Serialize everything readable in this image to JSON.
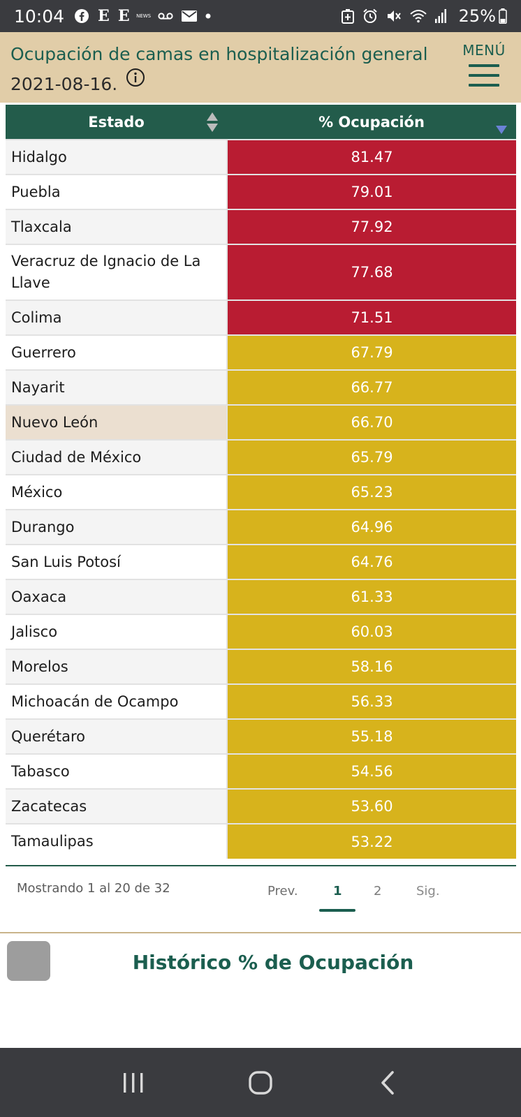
{
  "status_bar": {
    "time": "10:04",
    "e1": "E",
    "e2": "E",
    "news": "NEWS",
    "battery": "25%"
  },
  "header": {
    "title": "Ocupación de camas en hospitalización general",
    "date": "2021-08-16.",
    "menu_label": "MENÚ"
  },
  "table": {
    "col_estado": "Estado",
    "col_ocupacion": "% Ocupación",
    "rows": [
      {
        "estado": "Hidalgo",
        "ocupacion": "81.47"
      },
      {
        "estado": "Puebla",
        "ocupacion": "79.01"
      },
      {
        "estado": "Tlaxcala",
        "ocupacion": "77.92"
      },
      {
        "estado": "Veracruz de Ignacio de La Llave",
        "ocupacion": "77.68"
      },
      {
        "estado": "Colima",
        "ocupacion": "71.51"
      },
      {
        "estado": "Guerrero",
        "ocupacion": "67.79"
      },
      {
        "estado": "Nayarit",
        "ocupacion": "66.77"
      },
      {
        "estado": "Nuevo León",
        "ocupacion": "66.70"
      },
      {
        "estado": "Ciudad de México",
        "ocupacion": "65.79"
      },
      {
        "estado": "México",
        "ocupacion": "65.23"
      },
      {
        "estado": "Durango",
        "ocupacion": "64.96"
      },
      {
        "estado": "San Luis Potosí",
        "ocupacion": "64.76"
      },
      {
        "estado": "Oaxaca",
        "ocupacion": "61.33"
      },
      {
        "estado": "Jalisco",
        "ocupacion": "60.03"
      },
      {
        "estado": "Morelos",
        "ocupacion": "58.16"
      },
      {
        "estado": "Michoacán de Ocampo",
        "ocupacion": "56.33"
      },
      {
        "estado": "Querétaro",
        "ocupacion": "55.18"
      },
      {
        "estado": "Tabasco",
        "ocupacion": "54.56"
      },
      {
        "estado": "Zacatecas",
        "ocupacion": "53.60"
      },
      {
        "estado": "Tamaulipas",
        "ocupacion": "53.22"
      }
    ],
    "colors": {
      "high": "#b91c32",
      "medium": "#d7b31c"
    }
  },
  "pagination": {
    "info": "Mostrando 1 al 20 de 32",
    "prev": "Prev.",
    "page1": "1",
    "page2": "2",
    "next": "Sig."
  },
  "section": {
    "title": "Histórico % de Ocupación"
  }
}
